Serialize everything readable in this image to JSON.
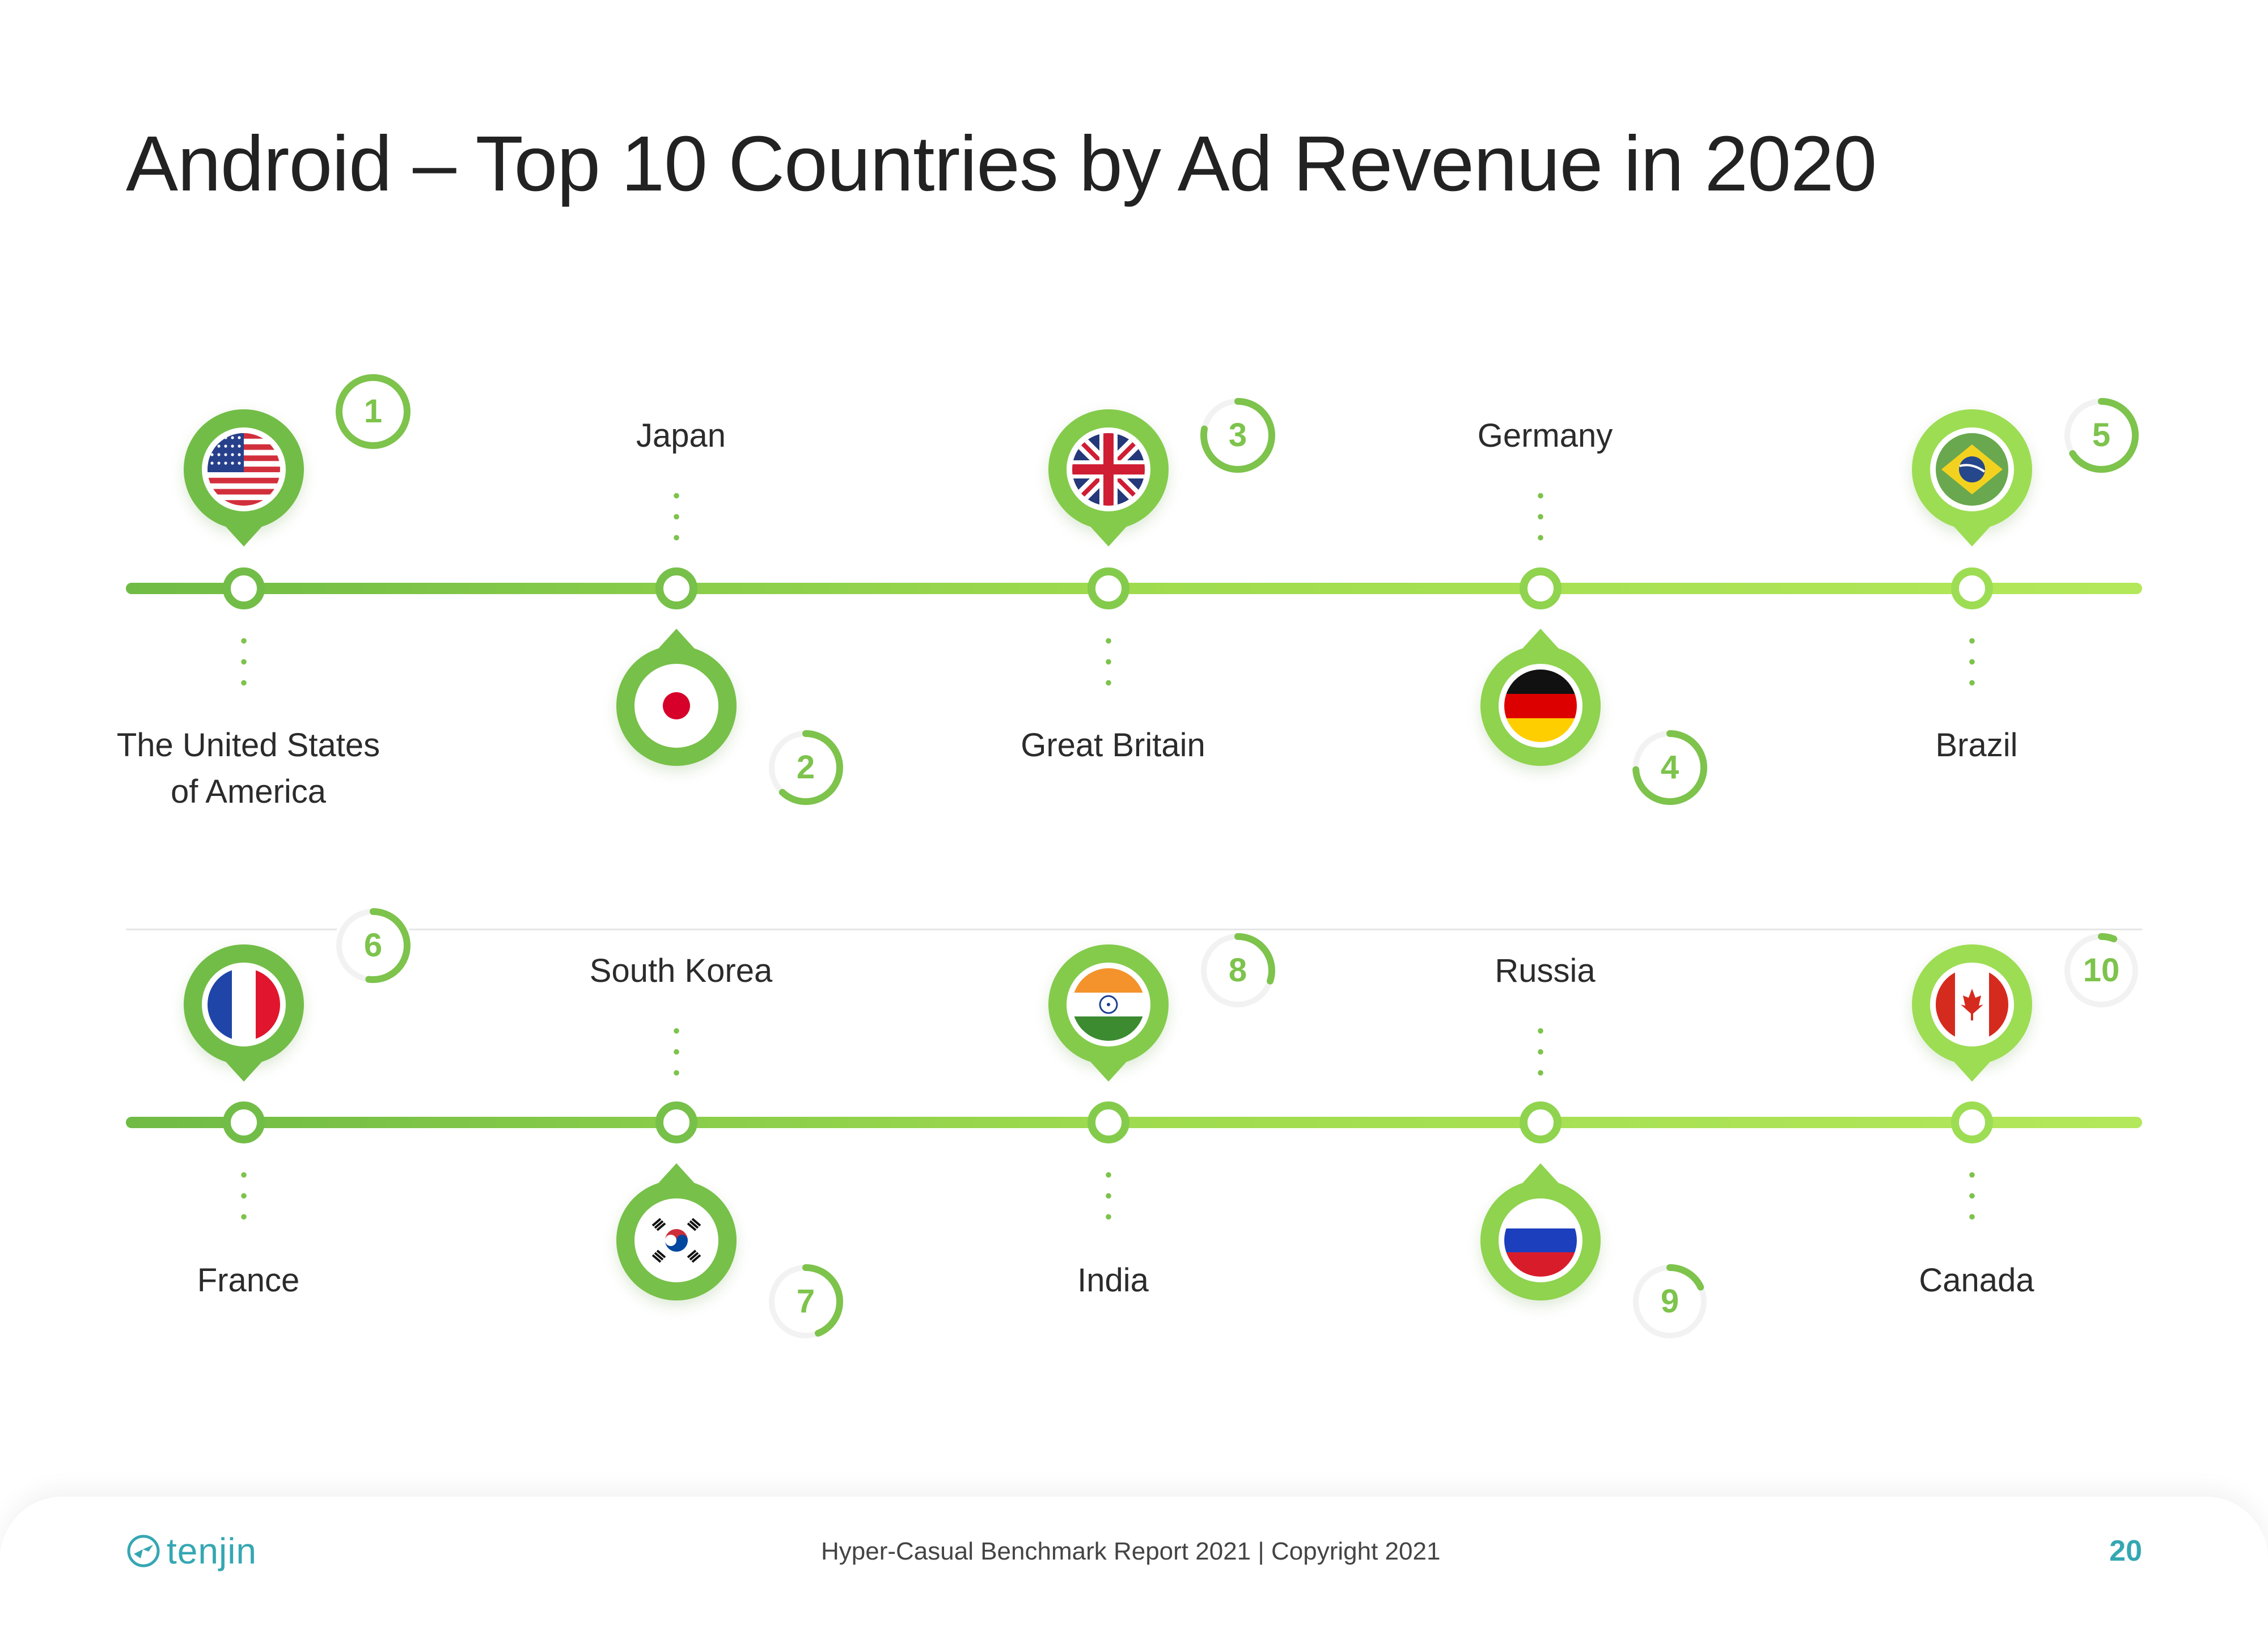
{
  "title": "Android – Top 10 Countries by Ad Revenue in 2020",
  "colors": {
    "accent": "#7dc34c",
    "accent_light": "#a6df52",
    "teal": "#35a7b3"
  },
  "countries": [
    {
      "rank": "1",
      "name_line1": "The United States",
      "name_line2": "of America",
      "flag": "usa-flag-icon"
    },
    {
      "rank": "2",
      "name_line1": "Japan",
      "name_line2": "",
      "flag": "japan-flag-icon"
    },
    {
      "rank": "3",
      "name_line1": "Great Britain",
      "name_line2": "",
      "flag": "uk-flag-icon"
    },
    {
      "rank": "4",
      "name_line1": "Germany",
      "name_line2": "",
      "flag": "germany-flag-icon"
    },
    {
      "rank": "5",
      "name_line1": "Brazil",
      "name_line2": "",
      "flag": "brazil-flag-icon"
    },
    {
      "rank": "6",
      "name_line1": "France",
      "name_line2": "",
      "flag": "france-flag-icon"
    },
    {
      "rank": "7",
      "name_line1": "South Korea",
      "name_line2": "",
      "flag": "south-korea-flag-icon"
    },
    {
      "rank": "8",
      "name_line1": "India",
      "name_line2": "",
      "flag": "india-flag-icon"
    },
    {
      "rank": "9",
      "name_line1": "Russia",
      "name_line2": "",
      "flag": "russia-flag-icon"
    },
    {
      "rank": "10",
      "name_line1": "Canada",
      "name_line2": "",
      "flag": "canada-flag-icon"
    }
  ],
  "footer": {
    "logo_text": "tenjin",
    "report": "Hyper-Casual Benchmark Report  2021 | Copyright 2021",
    "page": "20"
  }
}
